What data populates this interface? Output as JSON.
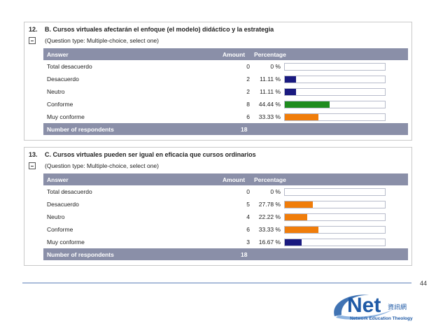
{
  "questions": [
    {
      "number": "12.",
      "title": "B. Cursos virtuales afectarán el enfoque (el modelo) didáctico y la estrategia",
      "type": "(Question type: Multiple-choice, select one)",
      "headers": {
        "answer": "Answer",
        "amount": "Amount",
        "percentage": "Percentage"
      },
      "rows": [
        {
          "answer": "Total desacuerdo",
          "amount": "0",
          "percentage": "0 %",
          "fraction": 0,
          "color": "#1a1a80"
        },
        {
          "answer": "Desacuerdo",
          "amount": "2",
          "percentage": "11.11 %",
          "fraction": 0.1111,
          "color": "#1a1a80"
        },
        {
          "answer": "Neutro",
          "amount": "2",
          "percentage": "11.11 %",
          "fraction": 0.1111,
          "color": "#1a1a80"
        },
        {
          "answer": "Conforme",
          "amount": "8",
          "percentage": "44.44 %",
          "fraction": 0.4444,
          "color": "#1e8c1e"
        },
        {
          "answer": "Muy conforme",
          "amount": "6",
          "percentage": "33.33 %",
          "fraction": 0.3333,
          "color": "#f07d0a"
        }
      ],
      "footer": {
        "label": "Number of respondents",
        "value": "18"
      }
    },
    {
      "number": "13.",
      "title": "C. Cursos virtuales pueden ser igual en eficacia que cursos ordinarios",
      "type": "(Question type: Multiple-choice, select one)",
      "headers": {
        "answer": "Answer",
        "amount": "Amount",
        "percentage": "Percentage"
      },
      "rows": [
        {
          "answer": "Total desacuerdo",
          "amount": "0",
          "percentage": "0 %",
          "fraction": 0,
          "color": "#1a1a80"
        },
        {
          "answer": "Desacuerdo",
          "amount": "5",
          "percentage": "27.78 %",
          "fraction": 0.2778,
          "color": "#f07d0a"
        },
        {
          "answer": "Neutro",
          "amount": "4",
          "percentage": "22.22 %",
          "fraction": 0.2222,
          "color": "#f07d0a"
        },
        {
          "answer": "Conforme",
          "amount": "6",
          "percentage": "33.33 %",
          "fraction": 0.3333,
          "color": "#f07d0a"
        },
        {
          "answer": "Muy conforme",
          "amount": "3",
          "percentage": "16.67 %",
          "fraction": 0.1667,
          "color": "#1a1a80"
        }
      ],
      "footer": {
        "label": "Number of respondents",
        "value": "18"
      }
    }
  ],
  "page_number": "44",
  "logo": {
    "word": "Net",
    "chinese": "資訊網",
    "tagline": "Network Education Theology",
    "icon": "swoosh-logo-icon",
    "brand_color": "#1f5aa6"
  }
}
